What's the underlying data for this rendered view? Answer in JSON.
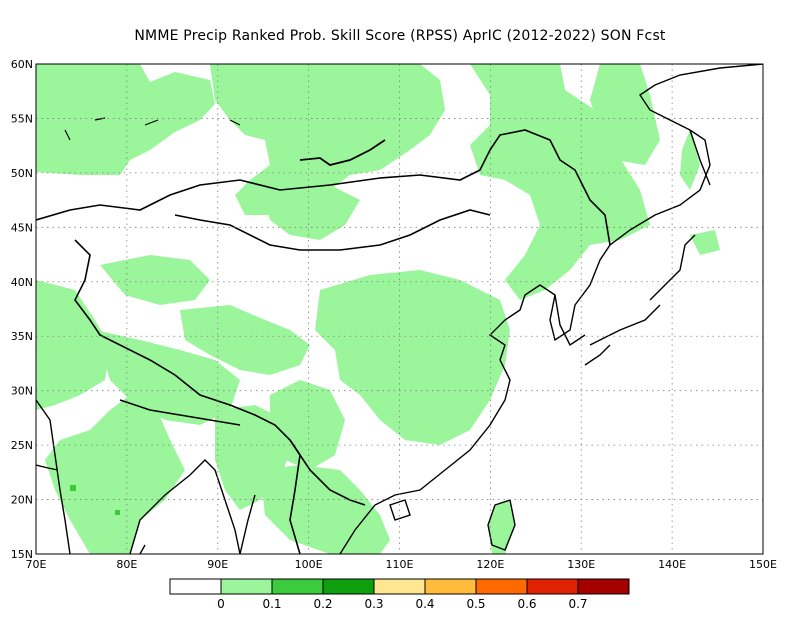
{
  "title": "NMME Precip Ranked Prob. Skill Score (RPSS) AprIC (2012-2022) SON Fcst",
  "map": {
    "lon_range": [
      70,
      150
    ],
    "lat_range": [
      15,
      60
    ],
    "lat_ticks": [
      "15N",
      "20N",
      "25N",
      "30N",
      "35N",
      "40N",
      "45N",
      "50N",
      "55N",
      "60N"
    ],
    "lon_ticks": [
      "70E",
      "80E",
      "90E",
      "100E",
      "110E",
      "120E",
      "130E",
      "140E",
      "150E"
    ],
    "land_color": "#ffffff",
    "fill_color": "#9bf59b",
    "coast_color": "#000000",
    "grid": "dotted"
  },
  "colorbar": {
    "colors": [
      "#ffffff",
      "#9bf59b",
      "#3ccb3c",
      "#0e9e0e",
      "#ffe690",
      "#ffbb3c",
      "#ff6a00",
      "#e02200",
      "#a50000"
    ],
    "labels": [
      "0",
      "0.1",
      "0.2",
      "0.3",
      "0.4",
      "0.5",
      "0.6",
      "0.7"
    ]
  }
}
